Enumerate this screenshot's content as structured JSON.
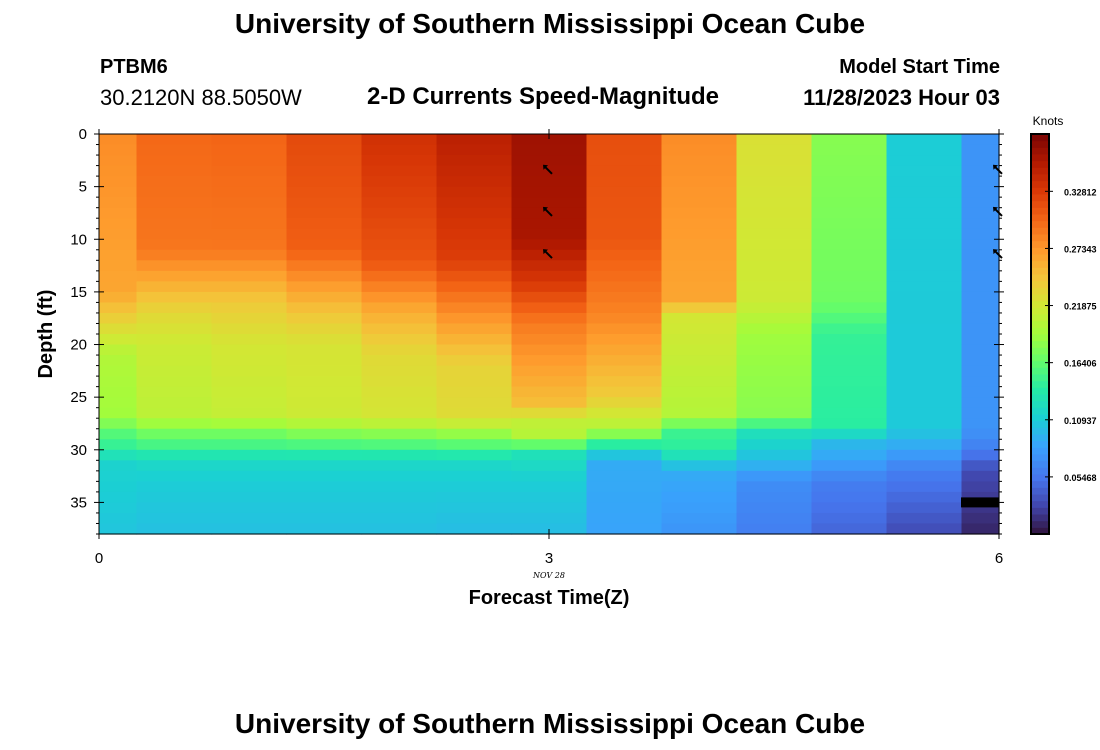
{
  "page": {
    "title": "University of Southern Mississippi Ocean Cube",
    "station": "PTBM6",
    "coordinates": "30.2120N  88.5050W",
    "product": "2-D Currents Speed-Magnitude",
    "model_start_label": "Model Start Time",
    "model_start_value": "11/28/2023 Hour 03",
    "footer_title": "University of Southern Mississippi Ocean Cube"
  },
  "chart_data": {
    "type": "heatmap",
    "title": "2-D Currents Speed-Magnitude",
    "xlabel": "Forecast Time(Z)",
    "ylabel": "Depth (ft)",
    "x_ticks": [
      0,
      3,
      6
    ],
    "x_date_label": "NOV 28",
    "y_ticks": [
      0,
      5,
      10,
      15,
      20,
      25,
      30,
      35
    ],
    "xlim": [
      0,
      6
    ],
    "ylim": [
      38,
      0
    ],
    "colorbar": {
      "label": "Knots",
      "ticks": [
        "0.05468",
        "0.10937",
        "0.16406",
        "0.21875",
        "0.27343",
        "0.32812"
      ],
      "tick_values": [
        0.05468,
        0.10937,
        0.16406,
        0.21875,
        0.27343,
        0.32812
      ],
      "range": [
        0.0,
        0.383
      ]
    },
    "times": [
      0.0,
      0.5,
      1.0,
      1.5,
      2.0,
      2.5,
      3.0,
      3.5,
      4.0,
      4.5,
      5.0,
      5.5,
      6.0
    ],
    "depth_step_ft": 1,
    "profiles": [
      [
        [
          0,
          0.28
        ],
        [
          15,
          0.265
        ],
        [
          21,
          0.2
        ],
        [
          27,
          0.19
        ],
        [
          28,
          0.165
        ],
        [
          30,
          0.14
        ],
        [
          31,
          0.115
        ],
        [
          38,
          0.105
        ]
      ],
      [
        [
          0,
          0.3
        ],
        [
          11,
          0.292
        ],
        [
          17,
          0.232
        ],
        [
          20,
          0.215
        ],
        [
          27,
          0.205
        ],
        [
          28,
          0.175
        ],
        [
          29,
          0.165
        ],
        [
          31,
          0.12
        ],
        [
          33,
          0.11
        ],
        [
          38,
          0.102
        ]
      ],
      [
        [
          0,
          0.302
        ],
        [
          11,
          0.292
        ],
        [
          16,
          0.242
        ],
        [
          20,
          0.22
        ],
        [
          27,
          0.21
        ],
        [
          28,
          0.175
        ],
        [
          29,
          0.165
        ],
        [
          31,
          0.12
        ],
        [
          33,
          0.11
        ],
        [
          38,
          0.102
        ]
      ],
      [
        [
          0,
          0.318
        ],
        [
          11,
          0.305
        ],
        [
          17,
          0.245
        ],
        [
          20,
          0.222
        ],
        [
          27,
          0.215
        ],
        [
          28,
          0.185
        ],
        [
          29,
          0.168
        ],
        [
          31,
          0.12
        ],
        [
          33,
          0.11
        ],
        [
          38,
          0.102
        ]
      ],
      [
        [
          0,
          0.335
        ],
        [
          12,
          0.312
        ],
        [
          17,
          0.26
        ],
        [
          21,
          0.23
        ],
        [
          27,
          0.22
        ],
        [
          28,
          0.19
        ],
        [
          29,
          0.17
        ],
        [
          31,
          0.12
        ],
        [
          33,
          0.11
        ],
        [
          38,
          0.102
        ]
      ],
      [
        [
          0,
          0.35
        ],
        [
          12,
          0.325
        ],
        [
          18,
          0.27
        ],
        [
          22,
          0.235
        ],
        [
          27,
          0.228
        ],
        [
          28,
          0.195
        ],
        [
          29,
          0.175
        ],
        [
          31,
          0.12
        ],
        [
          33,
          0.11
        ],
        [
          38,
          0.1
        ]
      ],
      [
        [
          0,
          0.365
        ],
        [
          10,
          0.36
        ],
        [
          14,
          0.33
        ],
        [
          18,
          0.29
        ],
        [
          26,
          0.248
        ],
        [
          27,
          0.21
        ],
        [
          29,
          0.2
        ],
        [
          30,
          0.13
        ],
        [
          33,
          0.11
        ],
        [
          38,
          0.1
        ]
      ],
      [
        [
          0,
          0.315
        ],
        [
          10,
          0.31
        ],
        [
          17,
          0.285
        ],
        [
          25,
          0.24
        ],
        [
          28,
          0.2
        ],
        [
          30,
          0.12
        ],
        [
          31,
          0.09
        ],
        [
          38,
          0.085
        ]
      ],
      [
        [
          0,
          0.28
        ],
        [
          16,
          0.265
        ],
        [
          17,
          0.22
        ],
        [
          27,
          0.2
        ],
        [
          28,
          0.15
        ],
        [
          30,
          0.14
        ],
        [
          32,
          0.09
        ],
        [
          38,
          0.075
        ]
      ],
      [
        [
          0,
          0.225
        ],
        [
          16,
          0.215
        ],
        [
          19,
          0.19
        ],
        [
          27,
          0.18
        ],
        [
          28,
          0.13
        ],
        [
          31,
          0.1
        ],
        [
          33,
          0.07
        ],
        [
          38,
          0.06
        ]
      ],
      [
        [
          0,
          0.18
        ],
        [
          16,
          0.17
        ],
        [
          19,
          0.145
        ],
        [
          28,
          0.14
        ],
        [
          29,
          0.1
        ],
        [
          31,
          0.085
        ],
        [
          33,
          0.06
        ],
        [
          38,
          0.045
        ]
      ],
      [
        [
          0,
          0.11
        ],
        [
          19,
          0.108
        ],
        [
          28,
          0.108
        ],
        [
          30,
          0.085
        ],
        [
          32,
          0.06
        ],
        [
          38,
          0.03
        ]
      ],
      [
        [
          0,
          0.075
        ],
        [
          28,
          0.075
        ],
        [
          30,
          0.06
        ],
        [
          32,
          0.03
        ],
        [
          38,
          0.01
        ]
      ]
    ],
    "bottom_marker_depth_ft": 35,
    "direction_arrows": [
      {
        "x": 3,
        "depth": 3.5
      },
      {
        "x": 3,
        "depth": 7.5
      },
      {
        "x": 3,
        "depth": 11.5
      },
      {
        "x": 6,
        "depth": 3.5
      },
      {
        "x": 6,
        "depth": 7.5
      },
      {
        "x": 6,
        "depth": 11.5
      }
    ]
  }
}
